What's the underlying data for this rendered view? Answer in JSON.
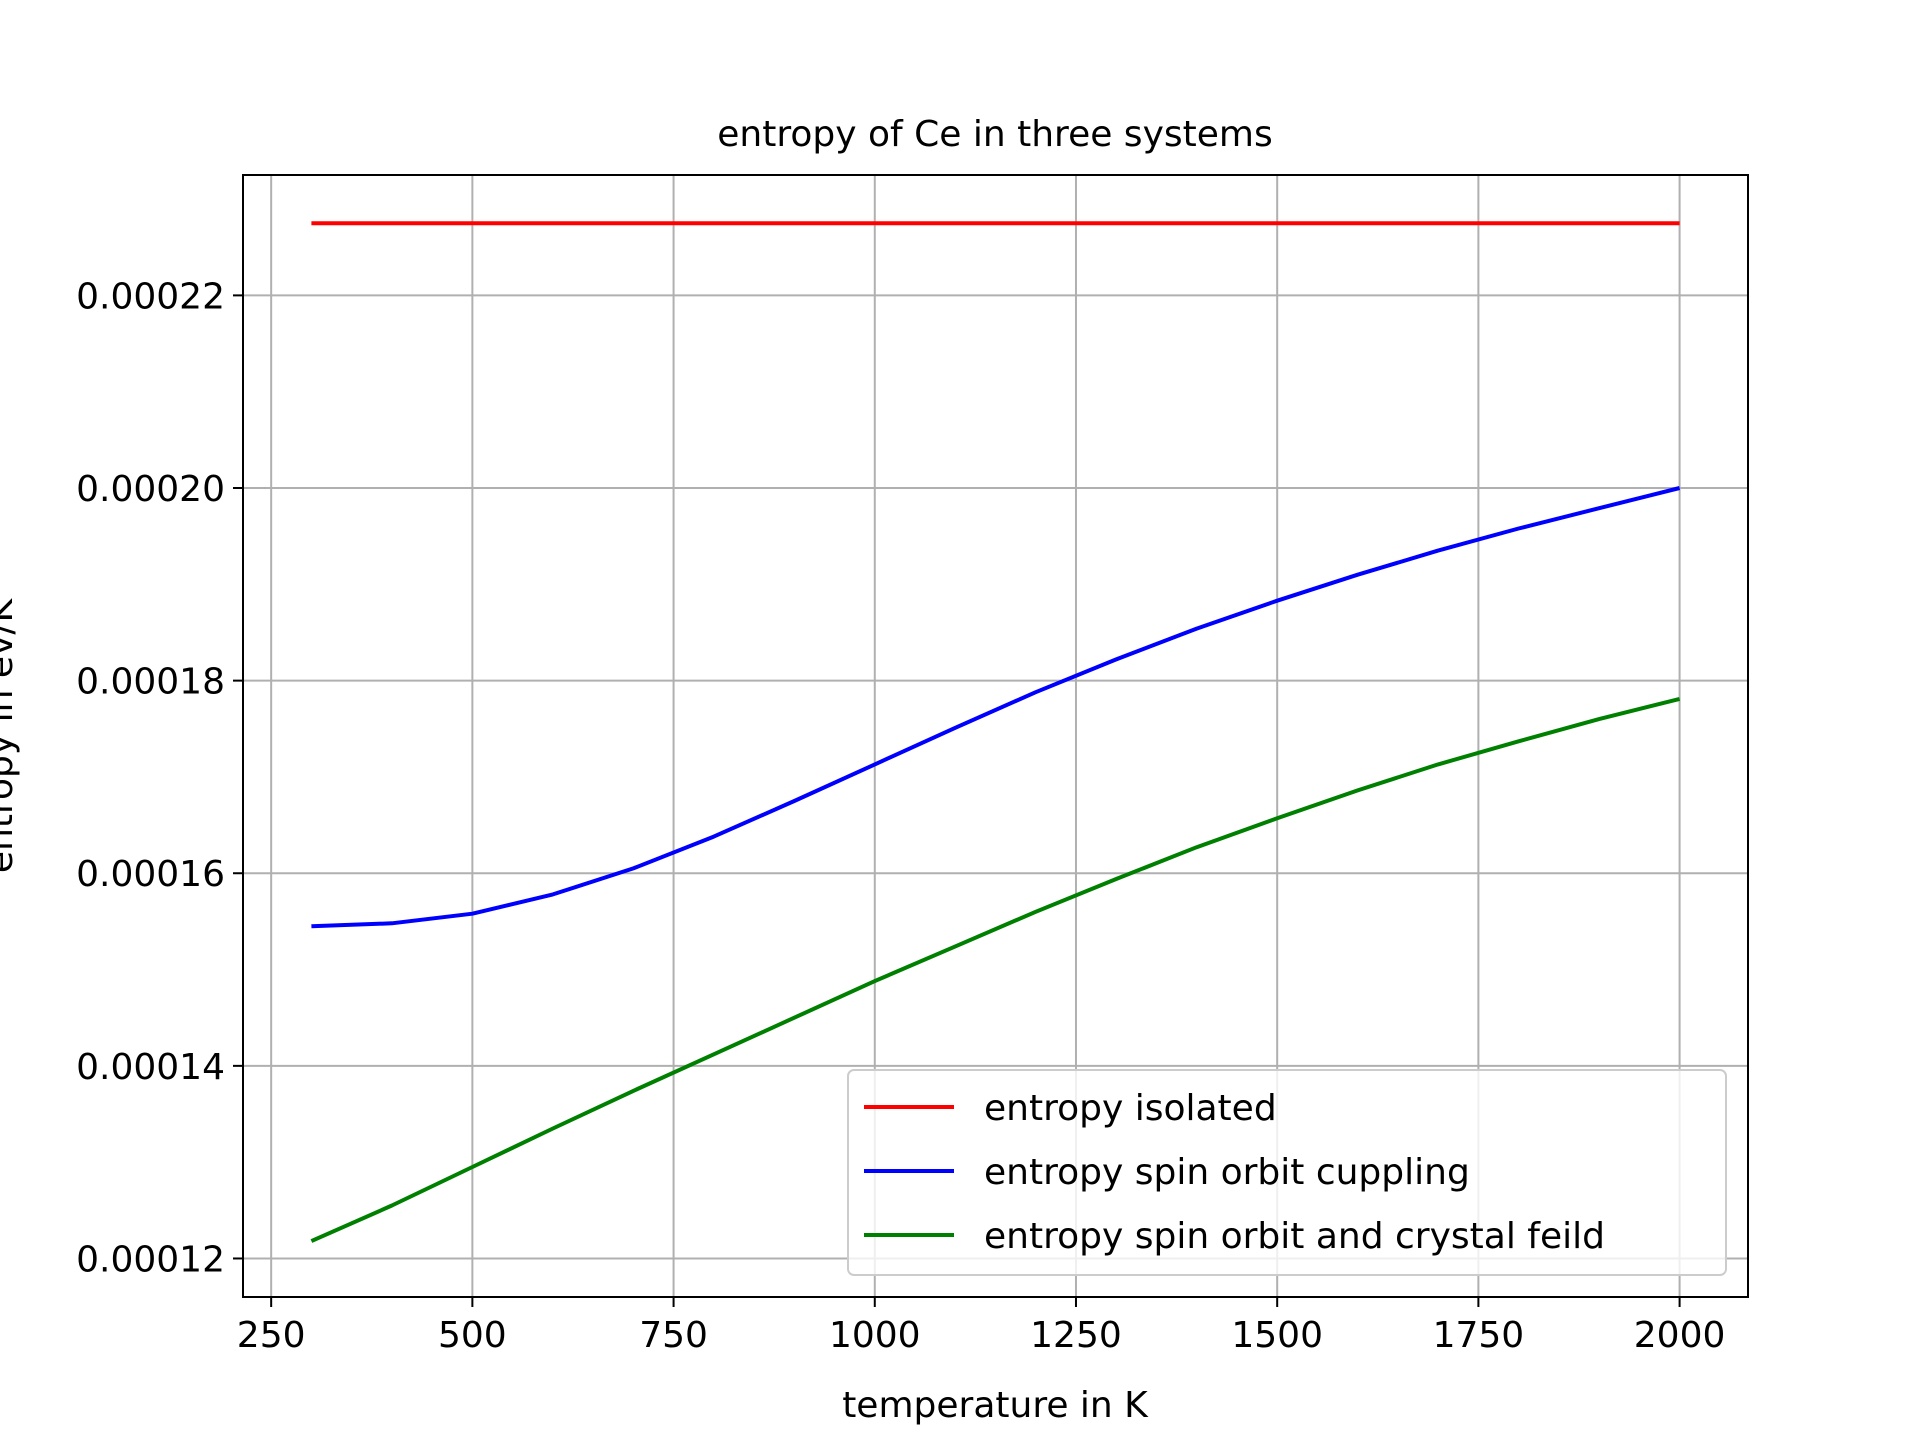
{
  "chart_data": {
    "type": "line",
    "title": "entropy of Ce in three systems",
    "xlabel": "temperature in K",
    "ylabel": "entropy in ev/K",
    "xlim": [
      215,
      2085
    ],
    "ylim": [
      0.000116,
      0.0002325
    ],
    "xticks": [
      250,
      500,
      750,
      1000,
      1250,
      1500,
      1750,
      2000
    ],
    "xtick_labels": [
      "250",
      "500",
      "750",
      "1000",
      "1250",
      "1500",
      "1750",
      "2000"
    ],
    "yticks": [
      0.00012,
      0.00014,
      0.00016,
      0.00018,
      0.0002,
      0.00022
    ],
    "ytick_labels": [
      "0.00012",
      "0.00014",
      "0.00016",
      "0.00018",
      "0.00020",
      "0.00022"
    ],
    "grid": true,
    "legend_position": "lower right",
    "x": [
      300,
      400,
      500,
      600,
      700,
      800,
      900,
      1000,
      1100,
      1200,
      1300,
      1400,
      1500,
      1600,
      1700,
      1800,
      1900,
      2000
    ],
    "series": [
      {
        "name": "entropy isolated",
        "color": "#ff0000",
        "values": [
          0.0002275,
          0.0002275,
          0.0002275,
          0.0002275,
          0.0002275,
          0.0002275,
          0.0002275,
          0.0002275,
          0.0002275,
          0.0002275,
          0.0002275,
          0.0002275,
          0.0002275,
          0.0002275,
          0.0002275,
          0.0002275,
          0.0002275,
          0.0002275
        ]
      },
      {
        "name": "entropy spin orbit cuppling",
        "color": "#0000ff",
        "values": [
          0.0001545,
          0.0001548,
          0.0001558,
          0.0001578,
          0.0001605,
          0.0001638,
          0.0001675,
          0.0001713,
          0.0001751,
          0.0001788,
          0.0001822,
          0.0001854,
          0.0001883,
          0.000191,
          0.0001935,
          0.0001958,
          0.0001979,
          0.0002
        ]
      },
      {
        "name": "entropy spin orbit and crystal feild",
        "color": "#008000",
        "values": [
          0.0001218,
          0.0001255,
          0.0001295,
          0.0001335,
          0.0001374,
          0.0001412,
          0.000145,
          0.0001488,
          0.0001524,
          0.000156,
          0.0001594,
          0.0001627,
          0.0001657,
          0.0001686,
          0.0001713,
          0.0001737,
          0.000176,
          0.0001781
        ]
      }
    ]
  }
}
